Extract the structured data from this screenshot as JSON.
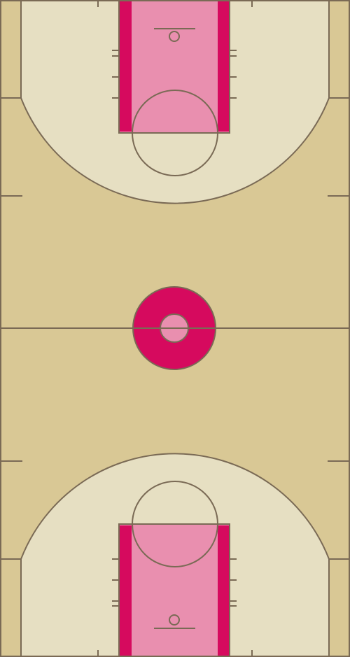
{
  "court": {
    "colors": {
      "floor": "#d9c895",
      "three_point_area": "#e6dfc2",
      "paint": "#e98faf",
      "paint_band": "#d60a5e",
      "center_ring": "#d60a5e",
      "center_inner": "#e98faf",
      "line": "#7a6a55"
    },
    "icons": [
      "basketball-hoop-icon",
      "center-circle-icon"
    ]
  }
}
